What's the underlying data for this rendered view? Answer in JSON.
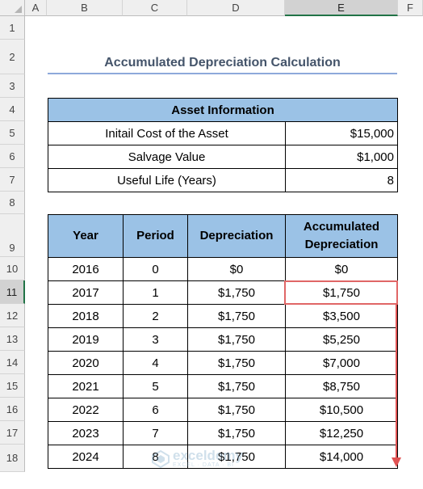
{
  "columns": [
    "A",
    "B",
    "C",
    "D",
    "E",
    "F"
  ],
  "rows": [
    "1",
    "2",
    "3",
    "4",
    "5",
    "6",
    "7",
    "8",
    "9",
    "10",
    "11",
    "12",
    "13",
    "14",
    "15",
    "16",
    "17",
    "18"
  ],
  "selected_column": "E",
  "selected_row": "11",
  "title": "Accumulated Depreciation Calculation",
  "asset": {
    "header": "Asset Information",
    "items": [
      {
        "label": "Initail Cost of the Asset",
        "value": "$15,000"
      },
      {
        "label": "Salvage Value",
        "value": "$1,000"
      },
      {
        "label": "Useful Life (Years)",
        "value": "8"
      }
    ]
  },
  "schedule": {
    "headers": {
      "year": "Year",
      "period": "Period",
      "depreciation": "Depreciation",
      "accum_line1": "Accumulated",
      "accum_line2": "Depreciation"
    },
    "rows": [
      {
        "year": "2016",
        "period": "0",
        "dep": "$0",
        "acc": "$0"
      },
      {
        "year": "2017",
        "period": "1",
        "dep": "$1,750",
        "acc": "$1,750"
      },
      {
        "year": "2018",
        "period": "2",
        "dep": "$1,750",
        "acc": "$3,500"
      },
      {
        "year": "2019",
        "period": "3",
        "dep": "$1,750",
        "acc": "$5,250"
      },
      {
        "year": "2020",
        "period": "4",
        "dep": "$1,750",
        "acc": "$7,000"
      },
      {
        "year": "2021",
        "period": "5",
        "dep": "$1,750",
        "acc": "$8,750"
      },
      {
        "year": "2022",
        "period": "6",
        "dep": "$1,750",
        "acc": "$10,500"
      },
      {
        "year": "2023",
        "period": "7",
        "dep": "$1,750",
        "acc": "$12,250"
      },
      {
        "year": "2024",
        "period": "8",
        "dep": "$1,750",
        "acc": "$14,000"
      }
    ]
  },
  "watermark": {
    "name": "exceldemy",
    "tagline": "EXCEL · DATA · BI",
    "icon": "exceldemy-logo-icon"
  },
  "colors": {
    "header_fill": "#9bc2e6",
    "title": "#44546a",
    "title_rule": "#8ea9db",
    "highlight": "#e06666",
    "selection": "#217346"
  }
}
